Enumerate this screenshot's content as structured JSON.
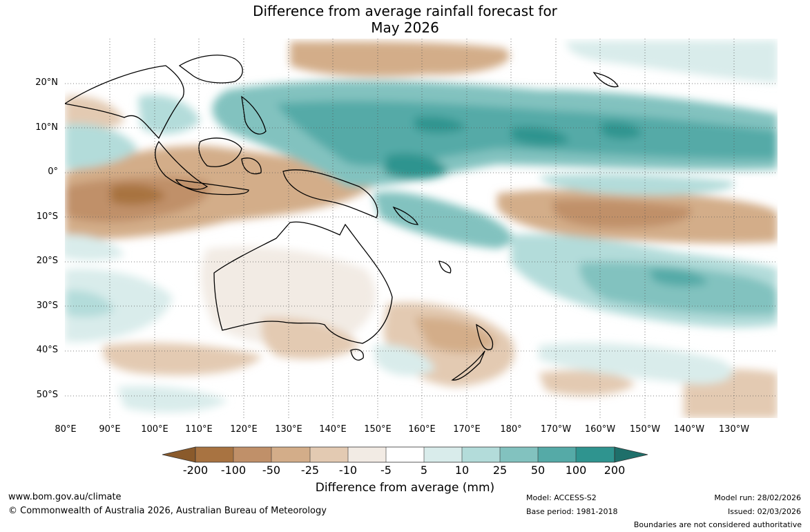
{
  "title": {
    "line1": "Difference from average rainfall forecast for",
    "line2": "May 2026"
  },
  "latitude_labels": [
    "20°N",
    "10°N",
    "0°",
    "10°S",
    "20°S",
    "30°S",
    "40°S",
    "50°S"
  ],
  "longitude_labels": [
    "80°E",
    "90°E",
    "100°E",
    "110°E",
    "120°E",
    "130°E",
    "140°E",
    "150°E",
    "160°E",
    "170°E",
    "180°",
    "170°W",
    "160°W",
    "150°W",
    "140°W",
    "130°W"
  ],
  "colorbar": {
    "title": "Difference from average (mm)",
    "tick_labels": [
      "-200",
      "-100",
      "-50",
      "-25",
      "-10",
      "-5",
      "5",
      "10",
      "25",
      "50",
      "100",
      "200"
    ],
    "colors": [
      "#8a5a2b",
      "#a87341",
      "#c09069",
      "#d3ad89",
      "#e3cab2",
      "#f2ebe4",
      "#ffffff",
      "#d9eceb",
      "#b3dcda",
      "#82c2bf",
      "#55aaa7",
      "#2f948f",
      "#1e6f6a"
    ]
  },
  "footer": {
    "website": "www.bom.gov.au/climate",
    "copyright": "© Commonwealth of Australia 2026, Australian Bureau of Meteorology",
    "model": "Model: ACCESS-S2",
    "base_period": "Base period: 1981-2018",
    "model_run": "Model run: 28/02/2026",
    "issued": "Issued: 02/03/2026",
    "boundaries": "Boundaries are not considered authoritative"
  }
}
